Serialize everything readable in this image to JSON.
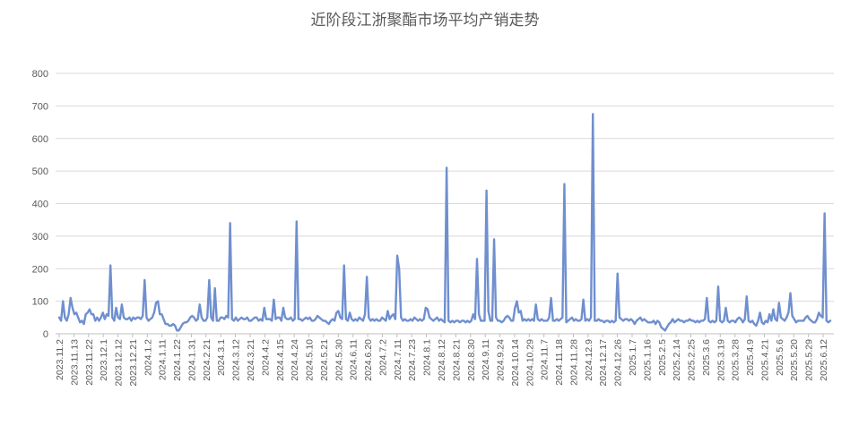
{
  "chart_data": {
    "type": "line",
    "title": "近阶段江浙聚酯市场平均产销走势",
    "xlabel": "",
    "ylabel": "",
    "ylim": [
      0,
      800
    ],
    "yticks": [
      0,
      100,
      200,
      300,
      400,
      500,
      600,
      700,
      800
    ],
    "grid": true,
    "legend": "none",
    "colors": {
      "series": "#6f8fcf",
      "grid": "#d9d9d9",
      "text": "#595959"
    },
    "x_tick_labels": [
      "2023.11.2",
      "2023.11.13",
      "2023.11.22",
      "2023.12.1",
      "2023.12.12",
      "2023.12.21",
      "2024.1.2",
      "2024.1.11",
      "2024.1.22",
      "2024.1.31",
      "2024.2.21",
      "2024.3.1",
      "2024.3.12",
      "2024.3.21",
      "2024.4.2",
      "2024.4.15",
      "2024.4.24",
      "2024.5.10",
      "2024.5.21",
      "2024.5.30",
      "2024.6.11",
      "2024.6.20",
      "2024.7.2",
      "2024.7.11",
      "2024.7.23",
      "2024.8.1",
      "2024.8.12",
      "2024.8.21",
      "2024.8.30",
      "2024.9.11",
      "2024.9.24",
      "2024.10.14",
      "2024.10.29",
      "2024.11.7",
      "2024.11.18",
      "2024.11.28",
      "2024.12.9",
      "2024.12.17",
      "2024.12.26",
      "2025.1.7",
      "2025.1.16",
      "2025.2.5",
      "2025.2.14",
      "2025.2.25",
      "2025.3.6",
      "2025.3.19",
      "2025.3.28",
      "2025.4.9",
      "2025.4.21",
      "2025.5.6",
      "2025.5.20",
      "2025.5.29",
      "2025.6.12"
    ],
    "series": [
      {
        "values": [
          50,
          40,
          100,
          50,
          40,
          60,
          110,
          80,
          60,
          65,
          50,
          35,
          40,
          30,
          60,
          65,
          75,
          60,
          60,
          40,
          50,
          40,
          50,
          65,
          45,
          60,
          55,
          210,
          50,
          40,
          80,
          50,
          45,
          90,
          50,
          45,
          45,
          50,
          40,
          50,
          45,
          50,
          50,
          45,
          55,
          165,
          50,
          40,
          45,
          50,
          65,
          95,
          100,
          60,
          60,
          45,
          30,
          30,
          25,
          25,
          30,
          25,
          10,
          10,
          20,
          30,
          35,
          35,
          40,
          50,
          55,
          50,
          40,
          45,
          90,
          50,
          40,
          40,
          50,
          165,
          50,
          40,
          140,
          40,
          40,
          50,
          50,
          45,
          55,
          50,
          340,
          45,
          40,
          50,
          40,
          45,
          50,
          45,
          45,
          50,
          40,
          40,
          45,
          50,
          50,
          40,
          45,
          40,
          80,
          45,
          45,
          45,
          40,
          105,
          45,
          50,
          50,
          40,
          80,
          50,
          45,
          45,
          50,
          40,
          45,
          345,
          45,
          45,
          40,
          45,
          50,
          45,
          50,
          40,
          40,
          45,
          55,
          50,
          45,
          40,
          40,
          35,
          30,
          40,
          45,
          40,
          65,
          70,
          50,
          45,
          210,
          45,
          40,
          65,
          45,
          40,
          45,
          40,
          50,
          45,
          40,
          60,
          175,
          50,
          40,
          45,
          40,
          45,
          40,
          40,
          50,
          45,
          40,
          70,
          45,
          55,
          60,
          45,
          240,
          200,
          50,
          40,
          45,
          40,
          40,
          45,
          40,
          50,
          45,
          40,
          45,
          40,
          45,
          80,
          75,
          50,
          45,
          40,
          45,
          50,
          40,
          45,
          40,
          35,
          510,
          40,
          35,
          40,
          35,
          40,
          40,
          35,
          40,
          40,
          35,
          40,
          35,
          40,
          60,
          45,
          230,
          60,
          40,
          40,
          40,
          440,
          70,
          40,
          40,
          290,
          50,
          40,
          40,
          35,
          40,
          50,
          55,
          50,
          40,
          40,
          80,
          100,
          65,
          70,
          40,
          45,
          40,
          45,
          40,
          45,
          40,
          90,
          45,
          40,
          45,
          40,
          40,
          40,
          50,
          110,
          40,
          40,
          45,
          40,
          45,
          50,
          460,
          35,
          40,
          45,
          50,
          40,
          45,
          40,
          40,
          45,
          105,
          40,
          45,
          40,
          50,
          675,
          40,
          40,
          45,
          40,
          40,
          35,
          40,
          40,
          35,
          40,
          35,
          40,
          185,
          50,
          45,
          40,
          45,
          45,
          40,
          45,
          40,
          30,
          40,
          45,
          50,
          40,
          45,
          40,
          35,
          35,
          35,
          40,
          30,
          40,
          35,
          20,
          15,
          10,
          20,
          30,
          35,
          45,
          35,
          40,
          45,
          40,
          40,
          35,
          40,
          40,
          45,
          40,
          40,
          35,
          40,
          35,
          40,
          40,
          45,
          110,
          40,
          35,
          40,
          35,
          40,
          145,
          40,
          35,
          40,
          80,
          40,
          35,
          40,
          40,
          35,
          45,
          50,
          45,
          35,
          45,
          115,
          40,
          35,
          40,
          30,
          25,
          40,
          65,
          35,
          30,
          40,
          35,
          60,
          40,
          75,
          45,
          40,
          95,
          50,
          45,
          40,
          50,
          65,
          125,
          55,
          45,
          35,
          40,
          40,
          40,
          40,
          50,
          55,
          45,
          40,
          35,
          35,
          45,
          65,
          55,
          50,
          370,
          40,
          35,
          40
        ]
      }
    ]
  }
}
